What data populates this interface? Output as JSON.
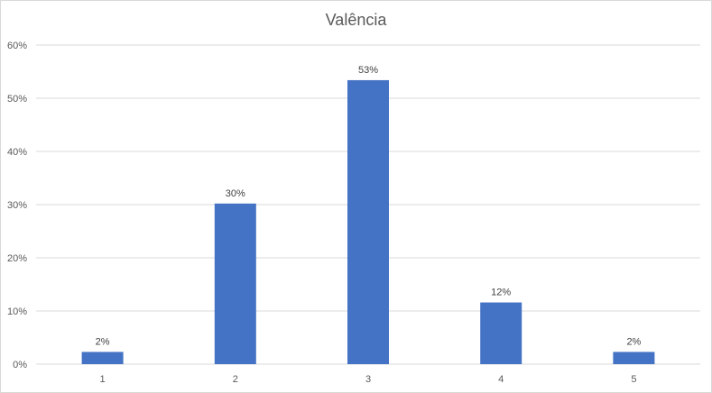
{
  "chart_data": {
    "type": "bar",
    "title": "Valência",
    "categories": [
      "1",
      "2",
      "3",
      "4",
      "5"
    ],
    "values": [
      2.3,
      30.2,
      53.4,
      11.6,
      2.3
    ],
    "data_labels": [
      "2%",
      "30%",
      "53%",
      "12%",
      "2%"
    ],
    "ylim": [
      0,
      60
    ],
    "yticks": [
      0,
      10,
      20,
      30,
      40,
      50,
      60
    ],
    "ytick_labels": [
      "0%",
      "10%",
      "20%",
      "30%",
      "40%",
      "50%",
      "60%"
    ],
    "grid": true,
    "legend": "none",
    "bar_color": "#4472c4",
    "grid_color": "#d9d9d9"
  }
}
